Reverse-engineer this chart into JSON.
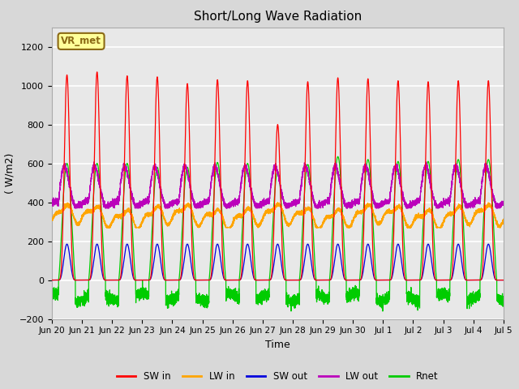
{
  "title": "Short/Long Wave Radiation",
  "xlabel": "Time",
  "ylabel": "( W/m2)",
  "ylim": [
    -200,
    1300
  ],
  "yticks": [
    -200,
    0,
    200,
    400,
    600,
    800,
    1000,
    1200
  ],
  "xtick_labels": [
    "Jun 20",
    "Jun 21",
    "Jun 22",
    "Jun 23",
    "Jun 24",
    "Jun 25",
    "Jun 26",
    "Jun 27",
    "Jun 28",
    "Jun 29",
    "Jun 30",
    "Jul 1",
    "Jul 2",
    "Jul 3",
    "Jul 4",
    "Jul 5"
  ],
  "colors": {
    "SW_in": "#ff0000",
    "LW_in": "#ffa500",
    "SW_out": "#0000dd",
    "LW_out": "#bb00bb",
    "Rnet": "#00cc00"
  },
  "label_box": "VR_met",
  "label_box_bg": "#ffff99",
  "label_box_border": "#8B6914",
  "legend_labels": [
    "SW in",
    "LW in",
    "SW out",
    "LW out",
    "Rnet"
  ],
  "background_color": "#d8d8d8",
  "plot_bg_color": "#e8e8e8",
  "n_days": 15,
  "pts_per_day": 480
}
